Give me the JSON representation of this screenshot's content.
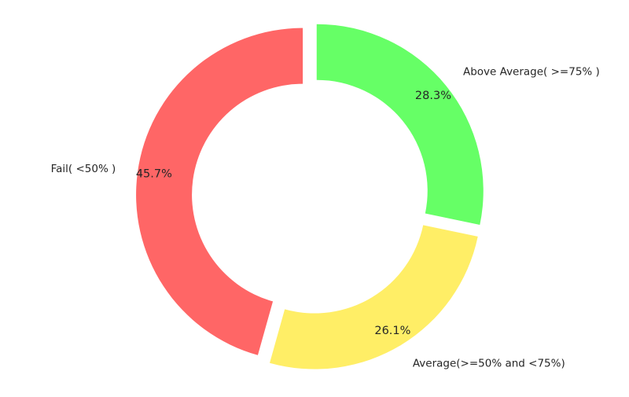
{
  "chart_data": {
    "type": "pie",
    "style": "donut",
    "title": "",
    "slices": [
      {
        "label": "Above Average( >=75% )",
        "value": 28.3,
        "pct_label": "28.3%",
        "color": "#66ff66"
      },
      {
        "label": "Average(>=50% and <75%)",
        "value": 26.1,
        "pct_label": "26.1%",
        "color": "#ffee66"
      },
      {
        "label": "Fail( <50% )",
        "value": 45.7,
        "pct_label": "45.7%",
        "color": "#ff6666"
      }
    ],
    "start": "top",
    "direction": "clockwise",
    "exploded": true,
    "legend": "none"
  }
}
